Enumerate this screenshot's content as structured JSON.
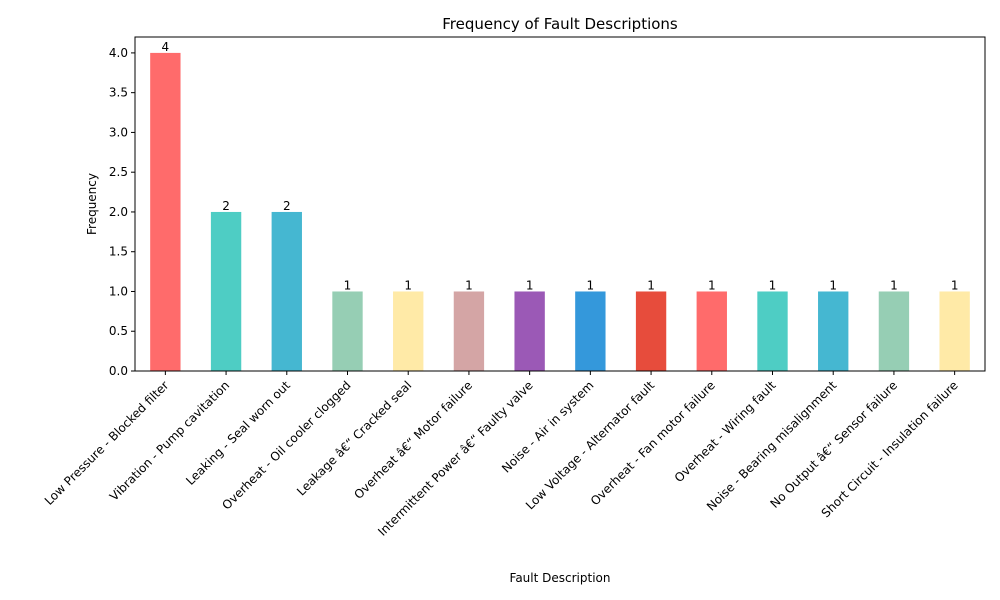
{
  "chart_data": {
    "type": "bar",
    "title": "Frequency of Fault Descriptions",
    "xlabel": "Fault Description",
    "ylabel": "Frequency",
    "ylim": [
      0,
      4.2
    ],
    "yticks": [
      "0.0",
      "0.5",
      "1.0",
      "1.5",
      "2.0",
      "2.5",
      "3.0",
      "3.5",
      "4.0"
    ],
    "grid": false,
    "categories": [
      "Low Pressure - Blocked filter",
      "Vibration - Pump cavitation",
      "Leaking - Seal worn out",
      "Overheat - Oil cooler clogged",
      "Leakage â€“ Cracked seal",
      "Overheat â€“ Motor failure",
      "Intermittent Power â€“ Faulty valve",
      "Noise - Air in system",
      "Low Voltage - Alternator fault",
      "Overheat - Fan motor failure",
      "Overheat - Wiring fault",
      "Noise - Bearing misalignment",
      "No Output â€“ Sensor failure",
      "Short Circuit - Insulation failure"
    ],
    "values": [
      4,
      2,
      2,
      1,
      1,
      1,
      1,
      1,
      1,
      1,
      1,
      1,
      1,
      1
    ],
    "value_labels": [
      "4",
      "2",
      "2",
      "1",
      "1",
      "1",
      "1",
      "1",
      "1",
      "1",
      "1",
      "1",
      "1",
      "1"
    ],
    "colors": [
      "#ff6b6b",
      "#4ecdc4",
      "#45b7d1",
      "#96ceb4",
      "#ffeaa7",
      "#d4a5a5",
      "#9b59b6",
      "#3498db",
      "#e74c3c",
      "#ff6b6b",
      "#4ecdc4",
      "#45b7d1",
      "#96ceb4",
      "#ffeaa7"
    ]
  }
}
